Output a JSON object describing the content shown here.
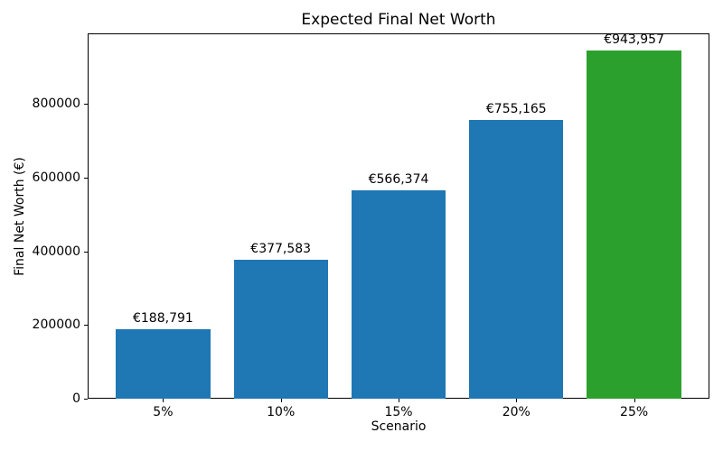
{
  "chart_data": {
    "type": "bar",
    "title": "Expected Final Net Worth",
    "xlabel": "Scenario",
    "ylabel": "Final Net Worth (€)",
    "categories": [
      "5%",
      "10%",
      "15%",
      "20%",
      "25%"
    ],
    "values": [
      188791,
      377583,
      566374,
      755165,
      943957
    ],
    "bar_labels": [
      "€188,791",
      "€377,583",
      "€566,374",
      "€755,165",
      "€943,957"
    ],
    "bar_colors": [
      "#1f77b4",
      "#1f77b4",
      "#1f77b4",
      "#1f77b4",
      "#2ca02c"
    ],
    "yticks": [
      0,
      200000,
      400000,
      600000,
      800000
    ],
    "ytick_labels": [
      "0",
      "200000",
      "400000",
      "600000",
      "800000"
    ],
    "ylim": [
      0,
      991155
    ],
    "bar_rel_width": 0.8,
    "x_unit_lim": [
      -0.64,
      4.64
    ],
    "grid": false,
    "legend": null,
    "axis_color": "#000000",
    "background_color": "#ffffff"
  }
}
